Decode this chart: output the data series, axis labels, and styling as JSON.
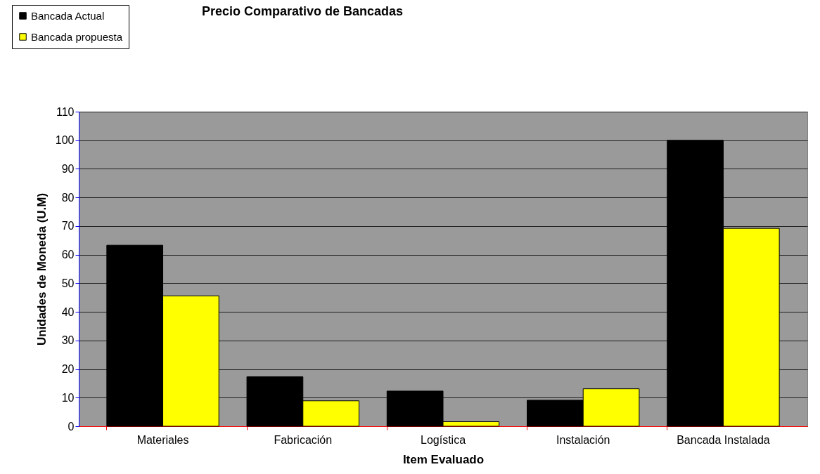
{
  "chart_data": {
    "type": "bar",
    "title": "Precio Comparativo de Bancadas",
    "xlabel": "Item Evaluado",
    "ylabel": "Unidades de Moneda (U.M)",
    "categories": [
      "Materiales",
      "Fabricación",
      "Logística",
      "Instalación",
      "Bancada Instalada"
    ],
    "series": [
      {
        "name": "Bancada Actual",
        "color": "#000000",
        "values": [
          63.3,
          17.3,
          12.3,
          9.1,
          100
        ]
      },
      {
        "name": "Bancada propuesta",
        "color": "#ffff00",
        "values": [
          45.6,
          8.9,
          1.6,
          13.1,
          69.2
        ]
      }
    ],
    "ylim": [
      0,
      110
    ],
    "yticks": [
      0,
      10,
      20,
      30,
      40,
      50,
      60,
      70,
      80,
      90,
      100,
      110
    ],
    "grid": "y",
    "legend": "top left"
  }
}
